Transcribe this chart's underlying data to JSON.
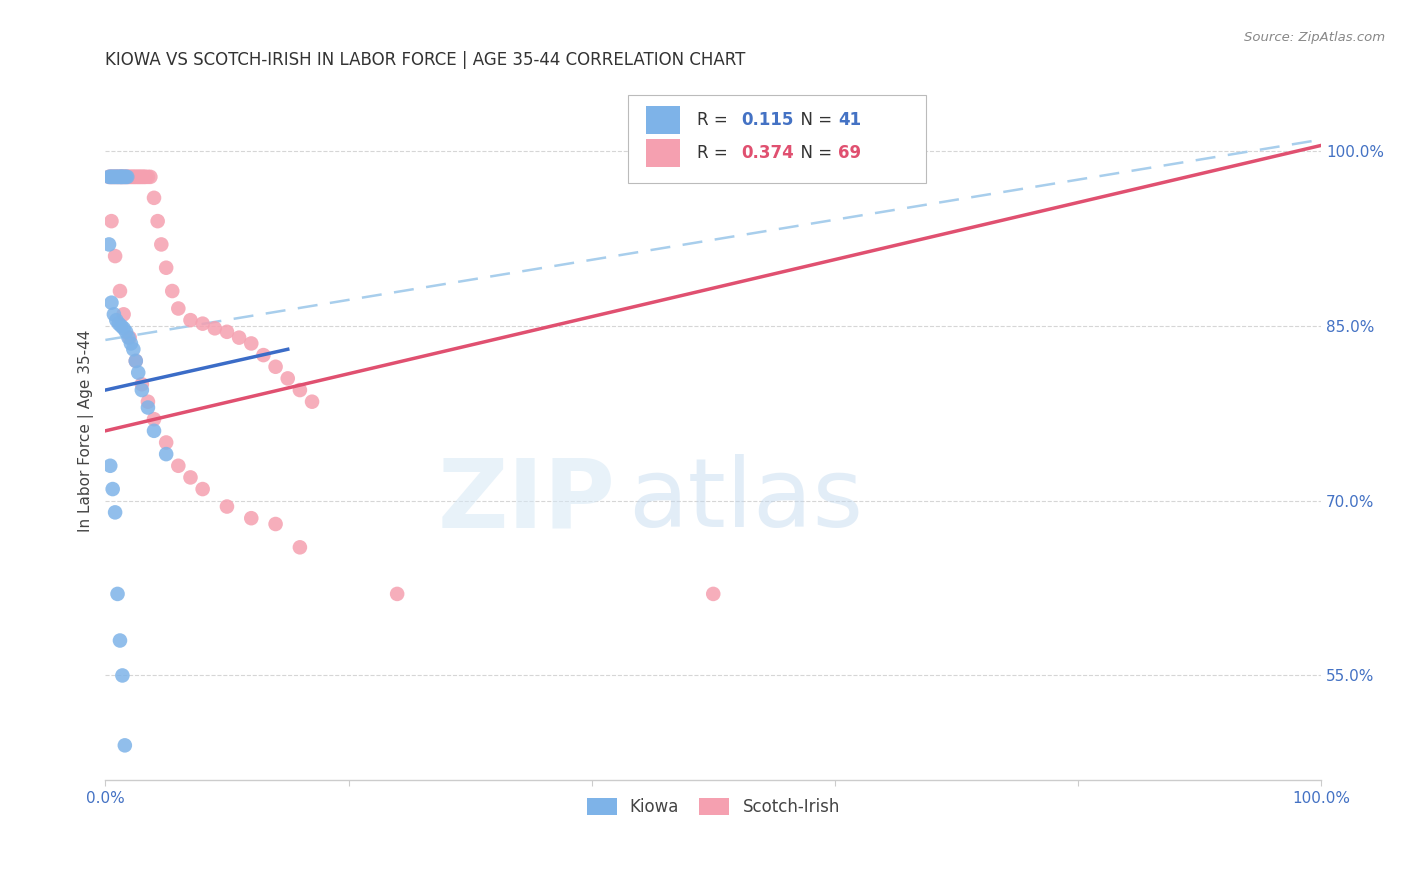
{
  "title": "KIOWA VS SCOTCH-IRISH IN LABOR FORCE | AGE 35-44 CORRELATION CHART",
  "source": "Source: ZipAtlas.com",
  "ylabel": "In Labor Force | Age 35-44",
  "xlim": [
    0.0,
    1.0
  ],
  "ylim": [
    0.46,
    1.06
  ],
  "xticks": [
    0.0,
    0.2,
    0.4,
    0.6,
    0.8,
    1.0
  ],
  "xticklabels": [
    "0.0%",
    "",
    "",
    "",
    "",
    "100.0%"
  ],
  "ytick_positions": [
    0.55,
    0.7,
    0.85,
    1.0
  ],
  "yticklabels": [
    "55.0%",
    "70.0%",
    "85.0%",
    "100.0%"
  ],
  "kiowa_R": "0.115",
  "kiowa_N": "41",
  "scotch_R": "0.374",
  "scotch_N": "69",
  "kiowa_color": "#7EB3E8",
  "scotch_color": "#F5A0B0",
  "kiowa_line_color": "#3B6CC7",
  "scotch_line_color": "#E05070",
  "dashed_line_color": "#A8CEEC",
  "background_color": "#FFFFFF",
  "kiowa_x": [
    0.003,
    0.004,
    0.005,
    0.006,
    0.007,
    0.008,
    0.009,
    0.01,
    0.011,
    0.012,
    0.013,
    0.013,
    0.014,
    0.015,
    0.016,
    0.017,
    0.018,
    0.003,
    0.005,
    0.007,
    0.009,
    0.011,
    0.013,
    0.015,
    0.017,
    0.019,
    0.021,
    0.023,
    0.025,
    0.027,
    0.03,
    0.035,
    0.04,
    0.05,
    0.004,
    0.006,
    0.008,
    0.01,
    0.012,
    0.014,
    0.016
  ],
  "kiowa_y": [
    0.978,
    0.978,
    0.978,
    0.978,
    0.978,
    0.978,
    0.978,
    0.978,
    0.978,
    0.978,
    0.978,
    0.978,
    0.978,
    0.978,
    0.978,
    0.978,
    0.978,
    0.92,
    0.87,
    0.86,
    0.855,
    0.852,
    0.85,
    0.848,
    0.845,
    0.84,
    0.835,
    0.83,
    0.82,
    0.81,
    0.795,
    0.78,
    0.76,
    0.74,
    0.73,
    0.71,
    0.69,
    0.62,
    0.58,
    0.55,
    0.49
  ],
  "scotch_x": [
    0.003,
    0.004,
    0.005,
    0.006,
    0.007,
    0.008,
    0.009,
    0.01,
    0.011,
    0.012,
    0.013,
    0.014,
    0.015,
    0.016,
    0.017,
    0.018,
    0.019,
    0.02,
    0.021,
    0.022,
    0.023,
    0.024,
    0.025,
    0.026,
    0.027,
    0.028,
    0.029,
    0.03,
    0.031,
    0.032,
    0.033,
    0.035,
    0.037,
    0.04,
    0.043,
    0.046,
    0.05,
    0.055,
    0.06,
    0.07,
    0.08,
    0.09,
    0.1,
    0.11,
    0.12,
    0.13,
    0.14,
    0.15,
    0.16,
    0.17,
    0.005,
    0.008,
    0.012,
    0.015,
    0.02,
    0.025,
    0.03,
    0.035,
    0.04,
    0.05,
    0.06,
    0.07,
    0.08,
    0.1,
    0.12,
    0.14,
    0.16,
    0.24,
    0.5
  ],
  "scotch_y": [
    0.978,
    0.978,
    0.978,
    0.978,
    0.978,
    0.978,
    0.978,
    0.978,
    0.978,
    0.978,
    0.978,
    0.978,
    0.978,
    0.978,
    0.978,
    0.978,
    0.978,
    0.978,
    0.978,
    0.978,
    0.978,
    0.978,
    0.978,
    0.978,
    0.978,
    0.978,
    0.978,
    0.978,
    0.978,
    0.978,
    0.978,
    0.978,
    0.978,
    0.96,
    0.94,
    0.92,
    0.9,
    0.88,
    0.865,
    0.855,
    0.852,
    0.848,
    0.845,
    0.84,
    0.835,
    0.825,
    0.815,
    0.805,
    0.795,
    0.785,
    0.94,
    0.91,
    0.88,
    0.86,
    0.84,
    0.82,
    0.8,
    0.785,
    0.77,
    0.75,
    0.73,
    0.72,
    0.71,
    0.695,
    0.685,
    0.68,
    0.66,
    0.62,
    0.62
  ],
  "kiowa_line_x": [
    0.0,
    0.15
  ],
  "kiowa_line_y": [
    0.795,
    0.83
  ],
  "scotch_line_x": [
    0.0,
    1.0
  ],
  "scotch_line_y": [
    0.76,
    1.005
  ],
  "dashed_line_x": [
    0.0,
    1.0
  ],
  "dashed_line_y": [
    0.838,
    1.01
  ]
}
